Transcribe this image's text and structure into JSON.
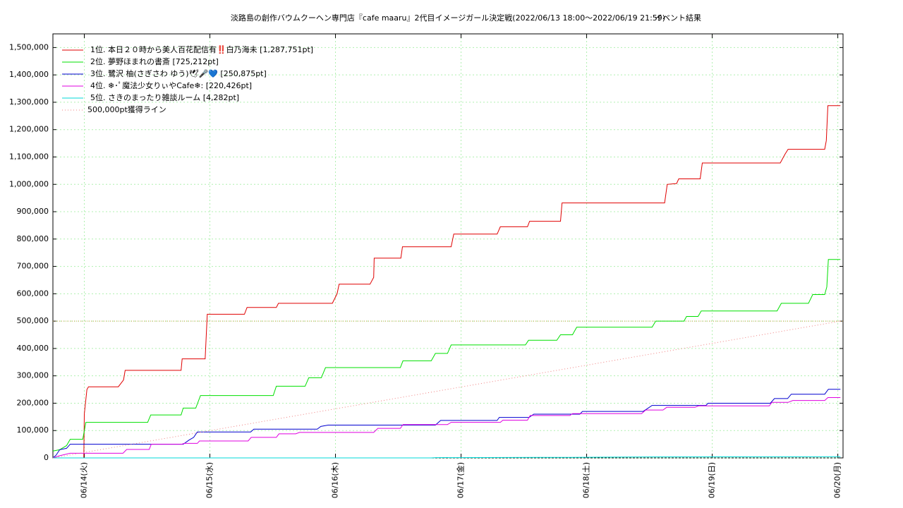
{
  "chart_data": {
    "type": "line",
    "title": "淡路島の創作バウムクーヘン専門店『cafe maaru』2代目イメージガール決定戦(2022/06/13 18:00～2022/06/19 21:59)",
    "subtitle": "イベント結果",
    "xlim": [
      18,
      169
    ],
    "xticks": [
      {
        "value": 24,
        "label": "06/14(火)"
      },
      {
        "value": 48,
        "label": "06/15(水)"
      },
      {
        "value": 72,
        "label": "06/16(木)"
      },
      {
        "value": 96,
        "label": "06/17(金)"
      },
      {
        "value": 120,
        "label": "06/18(土)"
      },
      {
        "value": 144,
        "label": "06/19(日)"
      },
      {
        "value": 168,
        "label": "06/20(月)"
      }
    ],
    "ylim": [
      0,
      1550000
    ],
    "yticks": [
      0,
      {
        "value": 100000,
        "label": "100,000"
      },
      {
        "value": 200000,
        "label": "200,000"
      },
      {
        "value": 300000,
        "label": "300,000"
      },
      {
        "value": 400000,
        "label": "400,000"
      },
      {
        "value": 500000,
        "label": "500,000"
      },
      {
        "value": 600000,
        "label": "600,000"
      },
      {
        "value": 700000,
        "label": "700,000"
      },
      {
        "value": 800000,
        "label": "800,000"
      },
      {
        "value": 900000,
        "label": "900,000"
      },
      {
        "value": 1000000,
        "label": "1,000,000"
      },
      {
        "value": 1100000,
        "label": "1,100,000"
      },
      {
        "value": 1200000,
        "label": "1,200,000"
      },
      {
        "value": 1300000,
        "label": "1,300,000"
      },
      {
        "value": 1400000,
        "label": "1,400,000"
      },
      {
        "value": 1500000,
        "label": "1,500,000"
      }
    ],
    "grid": true,
    "legend": "upper left",
    "hline": {
      "value": 500000,
      "color": "#c8a040"
    },
    "series": [
      {
        "name": "1位. 本日２０時から美人百花配信有‼️白乃海未 [1,287,751pt]",
        "color": "#e00000",
        "x": [
          18,
          23.9,
          24,
          24.5,
          24.8,
          30.5,
          31.5,
          31.8,
          42.5,
          42.7,
          47.1,
          47.5,
          54.6,
          55.1,
          60.7,
          61.1,
          71.4,
          72.3,
          72.7,
          78.6,
          79.3,
          79.4,
          84.5,
          84.8,
          94.1,
          94.6,
          102.9,
          103.5,
          108.7,
          109.1,
          115,
          115.3,
          134.9,
          135.4,
          137.2,
          137.6,
          141.7,
          142.1,
          157,
          157.9,
          158.5,
          165.5,
          165.8,
          166.1,
          168.5
        ],
        "values": [
          0,
          0,
          160000,
          250000,
          260000,
          260000,
          285000,
          320000,
          320000,
          362000,
          362000,
          525000,
          525000,
          550000,
          550000,
          565000,
          565000,
          600000,
          635000,
          635000,
          660000,
          730000,
          730000,
          772000,
          772000,
          818000,
          818000,
          845000,
          845000,
          865000,
          865000,
          932000,
          932000,
          1000000,
          1003000,
          1020000,
          1020000,
          1078000,
          1078000,
          1110000,
          1128000,
          1128000,
          1160000,
          1287751,
          1287751
        ]
      },
      {
        "name": "2位. 夢野ほまれの書斎 [725,212pt]",
        "color": "#00e000",
        "x": [
          18,
          19.3,
          20.6,
          21.3,
          23.7,
          24.3,
          36.1,
          36.7,
          42.5,
          42.9,
          45.3,
          46.2,
          60.1,
          60.7,
          66.2,
          66.9,
          69.3,
          70.1,
          84.4,
          84.9,
          90.3,
          91.1,
          93.4,
          94.1,
          108.3,
          108.9,
          114.3,
          115,
          117.3,
          118.1,
          132.5,
          133.2,
          138.6,
          139.1,
          141.3,
          141.9,
          156.4,
          157.2,
          162.4,
          163.2,
          165.5,
          165.9,
          166.2,
          168.5
        ],
        "values": [
          25000,
          30000,
          45000,
          68000,
          68000,
          130000,
          130000,
          157000,
          157000,
          182000,
          182000,
          228000,
          228000,
          262000,
          262000,
          293000,
          293000,
          330000,
          330000,
          355000,
          355000,
          382000,
          382000,
          413000,
          413000,
          430000,
          430000,
          450000,
          450000,
          478000,
          478000,
          500000,
          500000,
          517000,
          517000,
          537000,
          537000,
          565000,
          565000,
          597000,
          597000,
          625000,
          725212,
          725212
        ]
      },
      {
        "name": "3位. 鷺沢 柚(さぎさわ ゆう)🕊🎤💙 [250,875pt]",
        "color": "#0000d0",
        "x": [
          18,
          18.6,
          19.3,
          20.6,
          21.3,
          42.9,
          44,
          44.9,
          45.6,
          55.8,
          56.4,
          68.5,
          69.2,
          70.6,
          91.1,
          92.1,
          102.9,
          103.3,
          109,
          109.9,
          118.7,
          119.2,
          130.8,
          131.6,
          132.5,
          142.8,
          143.2,
          155.1,
          155.9,
          158.4,
          159.1,
          165.5,
          166.2,
          168.5
        ],
        "values": [
          0,
          10000,
          30000,
          35000,
          50000,
          50000,
          65000,
          75000,
          95000,
          95000,
          105000,
          105000,
          115000,
          120000,
          120000,
          137000,
          137000,
          148000,
          148000,
          160000,
          160000,
          170000,
          170000,
          180000,
          192000,
          192000,
          200000,
          200000,
          217000,
          217000,
          233000,
          233000,
          250875,
          250875
        ]
      },
      {
        "name": "4位. ❄･ﾟ魔法少女りぃやCafe❄︎: [220,426pt]",
        "color": "#e000e0",
        "x": [
          18,
          19.3,
          21.3,
          31.4,
          32.1,
          36.4,
          36.8,
          42.6,
          43.1,
          45.6,
          46,
          55.3,
          55.9,
          60.7,
          61.2,
          64.4,
          65.1,
          79.3,
          80.1,
          84.4,
          84.9,
          93.4,
          94.1,
          103.5,
          104,
          108.7,
          109.2,
          116.8,
          117.3,
          130.5,
          131.3,
          134.6,
          135.3,
          140.7,
          141.4,
          154.9,
          155.4,
          158.5,
          159.4,
          165.5,
          166.1,
          168.5
        ],
        "values": [
          0,
          8000,
          17000,
          17000,
          31000,
          31000,
          50000,
          50000,
          53000,
          53000,
          62000,
          62000,
          75000,
          75000,
          88000,
          88000,
          93000,
          93000,
          108000,
          108000,
          122000,
          122000,
          130000,
          130000,
          138000,
          138000,
          155000,
          155000,
          162000,
          162000,
          175000,
          175000,
          185000,
          185000,
          190000,
          190000,
          203000,
          203000,
          210000,
          210000,
          220426,
          220426
        ]
      },
      {
        "name": "5位. さきのまったり雑談ルーム [4,282pt]",
        "color": "#00d8d8",
        "x": [
          18,
          90.3,
          91.1,
          116.9,
          132,
          168.5
        ],
        "values": [
          0,
          0,
          1000,
          2000,
          3500,
          4282
        ]
      },
      {
        "name": "500,000pt獲得ライン",
        "color": "#f08080",
        "dash": true,
        "x": [
          18,
          168.5
        ],
        "values": [
          0,
          500000
        ]
      }
    ]
  }
}
